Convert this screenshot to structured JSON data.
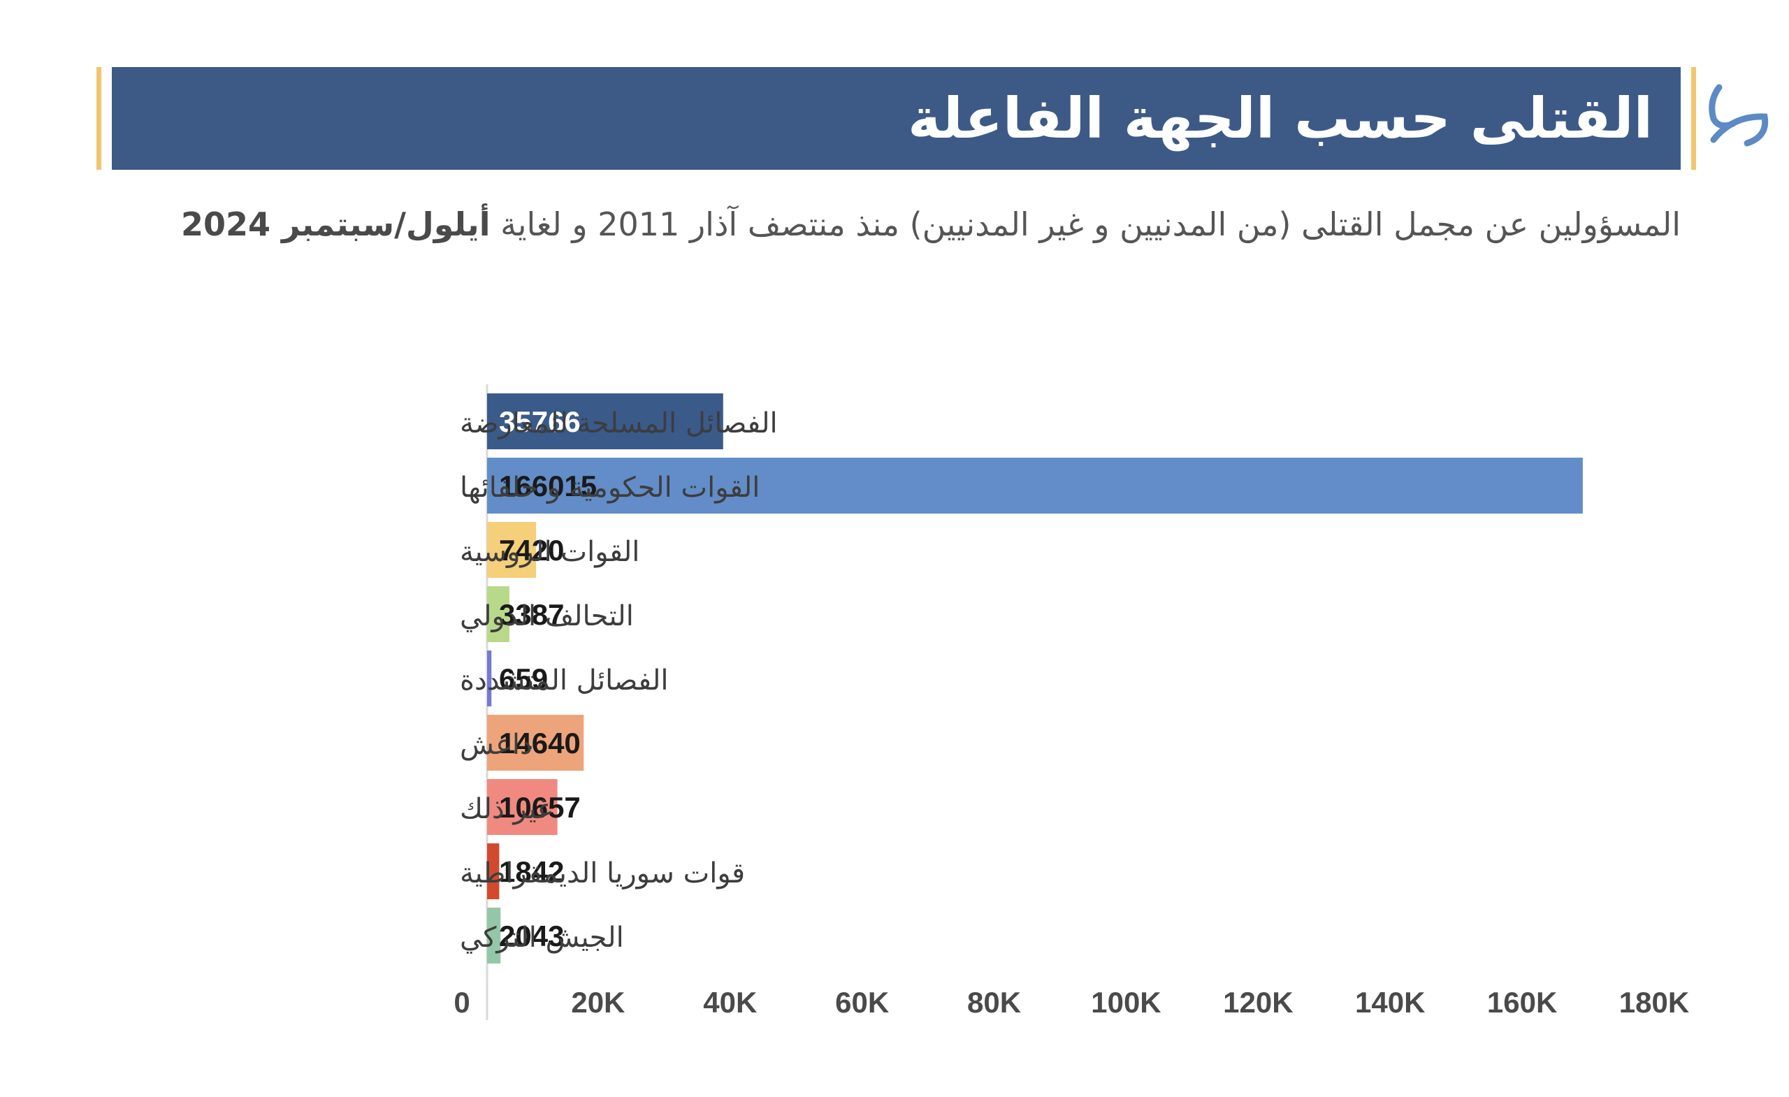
{
  "header": {
    "title": "القتلى حسب الجهة الفاعلة",
    "subtitle_main": "المسؤولين عن مجمل القتلى (من المدنيين و غير المدنيين) منذ منتصف آذار 2011 و لغاية",
    "subtitle_bold": "أيلول/سبتمبر 2024"
  },
  "colors": {
    "title_bar": "#3d5a87",
    "accent_gold": "#f2c66e",
    "logo": "#5b8ac4"
  },
  "chart_data": {
    "type": "bar",
    "orientation": "horizontal",
    "categories": [
      "الفصائل المسلحة للمعارضة",
      "القوات الحكومية و حلفائها",
      "القوات الروسية",
      "التحالف الدولي",
      "الفصائل المتشددة",
      "داعش",
      "غير ذلك",
      "قوات سوريا الديمقراطية",
      "الجيش التركي"
    ],
    "values": [
      35766,
      166015,
      7420,
      3387,
      659,
      14640,
      10657,
      1842,
      2043
    ],
    "value_labels": [
      "35766",
      "166015",
      "7420",
      "3387",
      "659",
      "14640",
      "10657",
      "1842",
      "2043"
    ],
    "bar_colors": [
      "#3a5a8a",
      "#628dc8",
      "#f5cf7a",
      "#b9d98a",
      "#7878d0",
      "#eea47a",
      "#f08a80",
      "#d24a2e",
      "#94c7a8"
    ],
    "label_colors": [
      "#ffffff",
      "#1a1a1a",
      "#1a1a1a",
      "#1a1a1a",
      "#1a1a1a",
      "#1a1a1a",
      "#1a1a1a",
      "#1a1a1a",
      "#1a1a1a"
    ],
    "xlim": [
      0,
      180000
    ],
    "x_ticks": [
      0,
      20000,
      40000,
      60000,
      80000,
      100000,
      120000,
      140000,
      160000,
      180000
    ],
    "x_tick_labels": [
      "0",
      "20K",
      "40K",
      "60K",
      "80K",
      "100K",
      "120K",
      "140K",
      "160K",
      "180K"
    ],
    "grid": false,
    "legend": "none"
  }
}
